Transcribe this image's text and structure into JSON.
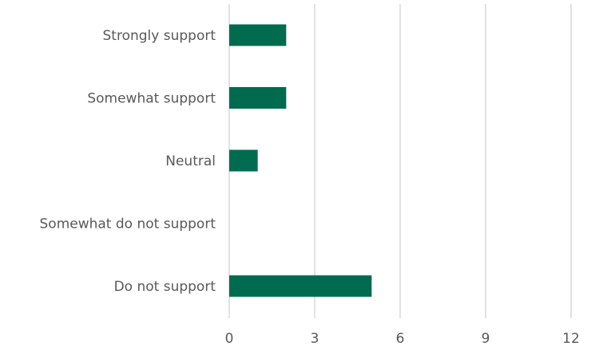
{
  "chart_data": {
    "type": "bar",
    "orientation": "horizontal",
    "categories": [
      "Strongly support",
      "Somewhat support",
      "Neutral",
      "Somewhat do not support",
      "Do not support"
    ],
    "values": [
      2,
      2,
      1,
      0,
      5
    ],
    "xlim": [
      0,
      12
    ],
    "xticks": [
      "0",
      "3",
      "6",
      "9",
      "12"
    ],
    "title": "",
    "xlabel": "",
    "ylabel": "",
    "grid": true,
    "legend": "none",
    "bar_color": "#006B4F",
    "grid_color": "#D9D9D9"
  }
}
